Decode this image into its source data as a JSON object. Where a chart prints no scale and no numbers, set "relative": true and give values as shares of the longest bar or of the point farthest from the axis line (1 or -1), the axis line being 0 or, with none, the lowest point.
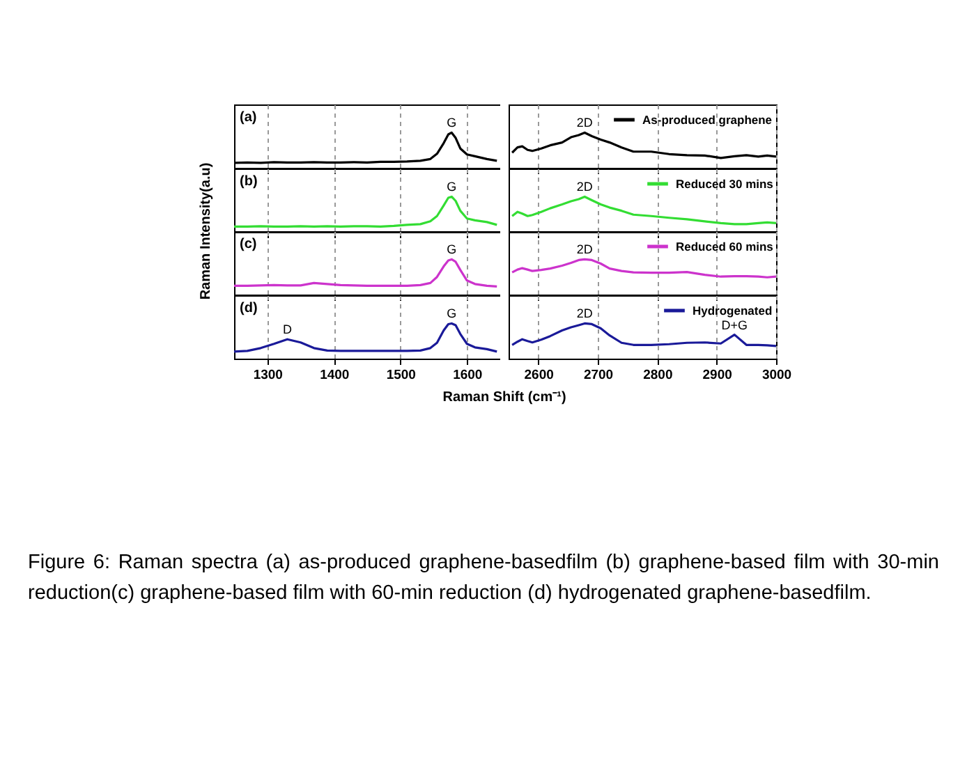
{
  "chart_data": [
    {
      "type": "line",
      "relative": true,
      "ylabel": "Raman Intensity(a.u)",
      "xlim": [
        1250,
        1650
      ],
      "xticks": [
        1300,
        1400,
        1500,
        1600
      ],
      "grid": "x",
      "tick_labels": false,
      "x": [
        1250,
        1270,
        1290,
        1310,
        1330,
        1350,
        1370,
        1390,
        1410,
        1430,
        1450,
        1470,
        1490,
        1510,
        1530,
        1545,
        1555,
        1565,
        1572,
        1577,
        1583,
        1590,
        1600,
        1612,
        1630,
        1645
      ],
      "series": [
        {
          "color": "#000000",
          "values": [
            0.14,
            0.15,
            0.14,
            0.16,
            0.15,
            0.15,
            0.16,
            0.15,
            0.15,
            0.16,
            0.15,
            0.17,
            0.17,
            0.18,
            0.2,
            0.25,
            0.4,
            0.7,
            0.95,
            1,
            0.85,
            0.55,
            0.38,
            0.33,
            0.25,
            0.2
          ]
        }
      ],
      "annotations": [
        "(a)",
        {
          "text": "G",
          "x": 1577,
          "y": 1
        }
      ]
    },
    {
      "type": "line",
      "relative": true,
      "xlim": [
        2550,
        3000
      ],
      "xticks": [
        2600,
        2700,
        2800,
        2900,
        3000
      ],
      "grid": "x",
      "legend": "top right",
      "tick_labels": false,
      "x": [
        2556,
        2565,
        2573,
        2582,
        2590,
        2605,
        2620,
        2640,
        2655,
        2668,
        2678,
        2690,
        2705,
        2720,
        2740,
        2760,
        2790,
        2820,
        2850,
        2880,
        2907,
        2930,
        2950,
        2970,
        2985,
        3000
      ],
      "series": [
        {
          "name": "As-produced graphene",
          "color": "#000000",
          "values": [
            0.43,
            0.58,
            0.61,
            0.51,
            0.48,
            0.55,
            0.64,
            0.72,
            0.87,
            0.93,
            1,
            0.9,
            0.8,
            0.72,
            0.58,
            0.46,
            0.46,
            0.39,
            0.36,
            0.35,
            0.28,
            0.33,
            0.36,
            0.32,
            0.35,
            0.32
          ]
        }
      ],
      "annotations": [
        {
          "text": "2D",
          "x": 2678,
          "y": 1
        }
      ]
    },
    {
      "type": "line",
      "relative": true,
      "xlim": [
        1250,
        1650
      ],
      "xticks": [
        1300,
        1400,
        1500,
        1600
      ],
      "grid": "x",
      "tick_labels": false,
      "x": [
        1250,
        1270,
        1290,
        1310,
        1330,
        1350,
        1370,
        1390,
        1410,
        1430,
        1450,
        1470,
        1490,
        1510,
        1530,
        1545,
        1555,
        1565,
        1572,
        1577,
        1583,
        1590,
        1600,
        1612,
        1630,
        1645
      ],
      "series": [
        {
          "color": "#33dd33",
          "values": [
            0.15,
            0.15,
            0.16,
            0.15,
            0.15,
            0.16,
            0.15,
            0.16,
            0.15,
            0.16,
            0.16,
            0.15,
            0.17,
            0.2,
            0.22,
            0.3,
            0.45,
            0.75,
            0.97,
            1,
            0.88,
            0.6,
            0.38,
            0.33,
            0.28,
            0.2
          ]
        }
      ],
      "annotations": [
        "(b)",
        {
          "text": "G",
          "x": 1577,
          "y": 1
        }
      ]
    },
    {
      "type": "line",
      "relative": true,
      "xlim": [
        2550,
        3000
      ],
      "xticks": [
        2600,
        2700,
        2800,
        2900,
        3000
      ],
      "grid": "x",
      "legend": "top right",
      "tick_labels": false,
      "x": [
        2556,
        2565,
        2573,
        2582,
        2590,
        2605,
        2620,
        2640,
        2655,
        2668,
        2678,
        2690,
        2705,
        2720,
        2740,
        2760,
        2790,
        2820,
        2850,
        2880,
        2907,
        2930,
        2950,
        2970,
        2985,
        3000
      ],
      "series": [
        {
          "name": "Reduced 30 mins",
          "color": "#33dd33",
          "values": [
            0.45,
            0.57,
            0.52,
            0.45,
            0.48,
            0.57,
            0.67,
            0.78,
            0.87,
            0.93,
            1,
            0.9,
            0.78,
            0.69,
            0.6,
            0.49,
            0.45,
            0.4,
            0.36,
            0.3,
            0.25,
            0.22,
            0.22,
            0.25,
            0.27,
            0.25
          ]
        }
      ],
      "annotations": [
        {
          "text": "2D",
          "x": 2678,
          "y": 1
        }
      ]
    },
    {
      "type": "line",
      "relative": true,
      "xlim": [
        1250,
        1650
      ],
      "xticks": [
        1300,
        1400,
        1500,
        1600
      ],
      "grid": "x",
      "tick_labels": false,
      "x": [
        1250,
        1270,
        1290,
        1310,
        1330,
        1350,
        1370,
        1390,
        1410,
        1430,
        1450,
        1470,
        1490,
        1510,
        1530,
        1545,
        1555,
        1565,
        1572,
        1577,
        1583,
        1590,
        1600,
        1612,
        1630,
        1645
      ],
      "series": [
        {
          "color": "#cc33cc",
          "values": [
            0.25,
            0.25,
            0.26,
            0.27,
            0.26,
            0.26,
            0.33,
            0.3,
            0.27,
            0.26,
            0.25,
            0.25,
            0.25,
            0.25,
            0.27,
            0.33,
            0.5,
            0.8,
            0.97,
            1,
            0.93,
            0.7,
            0.4,
            0.3,
            0.25,
            0.23
          ]
        }
      ],
      "annotations": [
        "(c)",
        {
          "text": "G",
          "x": 1577,
          "y": 1
        }
      ]
    },
    {
      "type": "line",
      "relative": true,
      "xlim": [
        2550,
        3000
      ],
      "xticks": [
        2600,
        2700,
        2800,
        2900,
        3000
      ],
      "grid": "x",
      "legend": "top right",
      "tick_labels": false,
      "x": [
        2556,
        2565,
        2573,
        2582,
        2590,
        2605,
        2620,
        2640,
        2655,
        2668,
        2678,
        2690,
        2705,
        2720,
        2740,
        2760,
        2790,
        2820,
        2850,
        2880,
        2907,
        2930,
        2950,
        2970,
        2985,
        3000
      ],
      "series": [
        {
          "name": "Reduced 60 mins",
          "color": "#cc33cc",
          "values": [
            0.63,
            0.71,
            0.75,
            0.71,
            0.67,
            0.7,
            0.74,
            0.82,
            0.9,
            0.98,
            1,
            0.98,
            0.88,
            0.74,
            0.67,
            0.63,
            0.62,
            0.62,
            0.64,
            0.56,
            0.51,
            0.52,
            0.52,
            0.51,
            0.49,
            0.51
          ]
        }
      ],
      "annotations": [
        {
          "text": "2D",
          "x": 2678,
          "y": 1
        }
      ]
    },
    {
      "type": "line",
      "relative": true,
      "xlabel": "Raman Shift (cm⁻¹)",
      "xlim": [
        1250,
        1650
      ],
      "xticks": [
        1300,
        1400,
        1500,
        1600
      ],
      "grid": "x",
      "tick_labels": "x",
      "x": [
        1250,
        1270,
        1290,
        1310,
        1330,
        1350,
        1370,
        1390,
        1410,
        1430,
        1450,
        1470,
        1490,
        1510,
        1530,
        1545,
        1555,
        1565,
        1572,
        1577,
        1583,
        1590,
        1600,
        1612,
        1630,
        1645
      ],
      "series": [
        {
          "color": "#1a1a99",
          "values": [
            0.2,
            0.22,
            0.3,
            0.42,
            0.55,
            0.46,
            0.3,
            0.23,
            0.22,
            0.22,
            0.22,
            0.22,
            0.22,
            0.22,
            0.23,
            0.3,
            0.45,
            0.8,
            0.98,
            1,
            0.95,
            0.7,
            0.42,
            0.32,
            0.27,
            0.2
          ]
        }
      ],
      "annotations": [
        "(d)",
        {
          "text": "D",
          "x": 1330,
          "y": 0.55
        },
        {
          "text": "G",
          "x": 1577,
          "y": 1
        },
        "Figure 6: Raman spectra (a) as-produced graphene-basedfilm (b) graphene-based film with 30-min reduction(c) graphene-based film with 60-min reduction (d) hydrogenated graphene-basedfilm."
      ]
    },
    {
      "type": "line",
      "relative": true,
      "xlim": [
        2550,
        3000
      ],
      "xticks": [
        2600,
        2700,
        2800,
        2900,
        3000
      ],
      "grid": "x",
      "legend": "top right",
      "tick_labels": "x",
      "x": [
        2556,
        2565,
        2573,
        2582,
        2590,
        2605,
        2620,
        2640,
        2655,
        2668,
        2678,
        2690,
        2705,
        2720,
        2740,
        2760,
        2790,
        2820,
        2850,
        2880,
        2907,
        2930,
        2950,
        2970,
        2985,
        3000
      ],
      "series": [
        {
          "name": "Hydrogenated",
          "color": "#1a1a99",
          "values": [
            0.39,
            0.48,
            0.55,
            0.5,
            0.46,
            0.54,
            0.64,
            0.8,
            0.89,
            0.95,
            1,
            0.98,
            0.86,
            0.66,
            0.45,
            0.39,
            0.39,
            0.41,
            0.45,
            0.46,
            0.43,
            0.68,
            0.39,
            0.39,
            0.38,
            0.36
          ]
        }
      ],
      "annotations": [
        {
          "text": "2D",
          "x": 2678,
          "y": 1
        },
        {
          "text": "D+G",
          "x": 2930,
          "y": 0.68
        }
      ]
    }
  ]
}
